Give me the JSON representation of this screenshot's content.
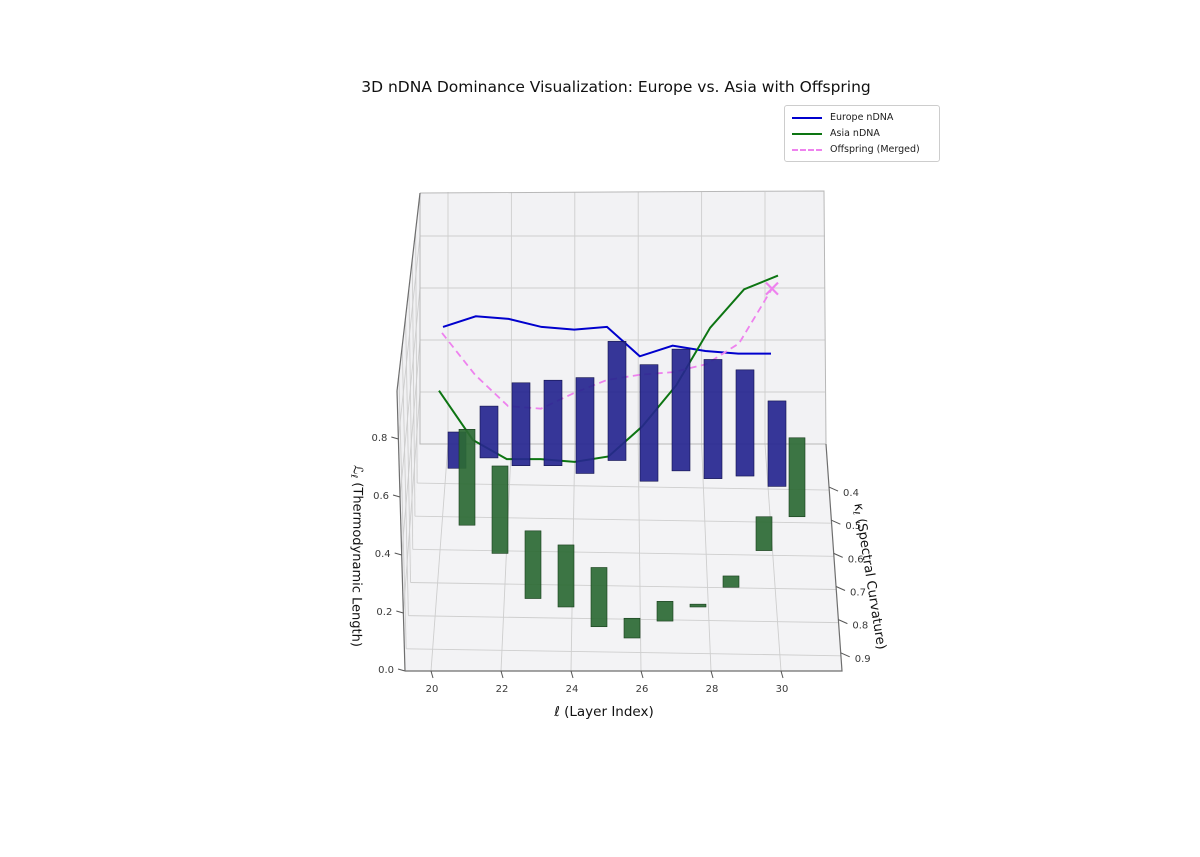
{
  "title": "3D nDNA Dominance Visualization: Europe vs. Asia with Offspring",
  "legend": {
    "entries": [
      {
        "label": "Europe nDNA",
        "color": "#0000cd",
        "dash": false
      },
      {
        "label": "Asia nDNA",
        "color": "#0d7512",
        "dash": false
      },
      {
        "label": "Offspring (Merged)",
        "color": "#ee82ee",
        "dash": true
      }
    ]
  },
  "axes": {
    "x": {
      "label": "ℓ (Layer Index)",
      "ticks": [
        "20",
        "22",
        "24",
        "26",
        "28",
        "30"
      ]
    },
    "y": {
      "label_symbol": "κ",
      "label_sub": "ℓ",
      "label_rest": " (Spectral Curvature)",
      "ticks": [
        "0.4",
        "0.5",
        "0.6",
        "0.7",
        "0.8",
        "0.9"
      ]
    },
    "z": {
      "label_symbol": "ℒ",
      "label_sub": "ℓ",
      "label_rest": " (Thermodynamic Length)",
      "ticks": [
        "0.0",
        "0.2",
        "0.4",
        "0.6",
        "0.8"
      ]
    }
  },
  "chart_data": {
    "type": "3d bar+line",
    "layers": [
      20,
      21,
      22,
      23,
      24,
      25,
      26,
      27,
      28,
      29,
      30
    ],
    "xlim": [
      19.3,
      31.7
    ],
    "ylim_kappa": [
      0.27,
      0.955
    ],
    "zlim": [
      0.0,
      0.965
    ],
    "grid": true,
    "series": [
      {
        "name": "Europe nDNA",
        "kind": "line",
        "color": "#0000cd",
        "kappa_depth": 0.45,
        "L": [
          0.61,
          0.65,
          0.64,
          0.61,
          0.6,
          0.61,
          0.5,
          0.54,
          0.52,
          0.51,
          0.51
        ]
      },
      {
        "name": "Asia nDNA",
        "kind": "line",
        "color": "#0d7512",
        "kappa_depth": 0.5,
        "L": [
          0.43,
          0.25,
          0.18,
          0.18,
          0.17,
          0.19,
          0.3,
          0.45,
          0.66,
          0.8,
          0.85
        ]
      },
      {
        "name": "Offspring (Merged)",
        "kind": "dashed-line",
        "color": "#ee82ee",
        "kappa_depth": 0.48,
        "end_marker": "x",
        "L": [
          0.62,
          0.46,
          0.34,
          0.33,
          0.39,
          0.44,
          0.46,
          0.47,
          0.5,
          0.58,
          0.79
        ]
      }
    ],
    "bars": [
      {
        "name": "Europe dominance bars",
        "color": "#26268f",
        "bottom": [
          0.07,
          0.11,
          0.08,
          0.08,
          0.05,
          0.1,
          0.02,
          0.06,
          0.03,
          0.04,
          0.0
        ],
        "top": [
          0.21,
          0.31,
          0.4,
          0.41,
          0.42,
          0.56,
          0.47,
          0.53,
          0.49,
          0.45,
          0.33
        ]
      },
      {
        "name": "Asia dominance bars",
        "color": "#2d6a34",
        "bottom": [
          0.4,
          0.3,
          0.14,
          0.11,
          0.04,
          0.0,
          0.06,
          0.11,
          0.18,
          0.31,
          0.43
        ],
        "top": [
          0.74,
          0.61,
          0.38,
          0.33,
          0.25,
          0.07,
          0.13,
          0.12,
          0.22,
          0.43,
          0.71
        ]
      }
    ]
  }
}
